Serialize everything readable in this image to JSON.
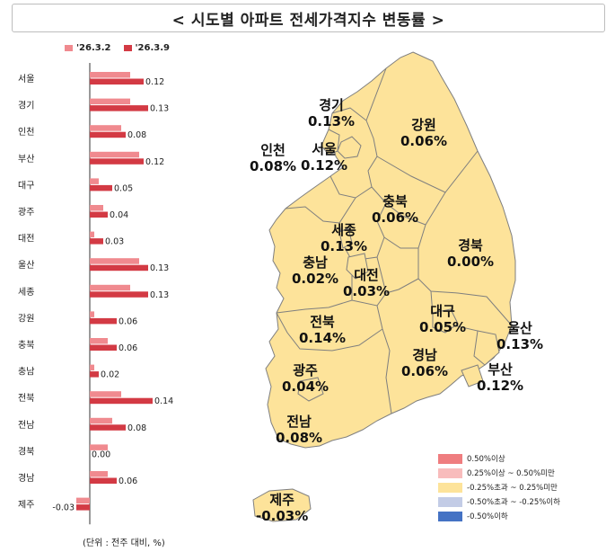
{
  "title": "< 시도별 아파트 전세가격지수 변동률 >",
  "legend_top": [
    {
      "label": "'26.3.2",
      "color": "#f08a8f"
    },
    {
      "label": "'26.3.9",
      "color": "#d33a44"
    }
  ],
  "unit_note": "(단위 : 전주 대비, %)",
  "chart_data": {
    "type": "bar",
    "orientation": "horizontal",
    "categories": [
      "서울",
      "경기",
      "인천",
      "부산",
      "대구",
      "광주",
      "대전",
      "울산",
      "세종",
      "강원",
      "충북",
      "충남",
      "전북",
      "전남",
      "경북",
      "경남",
      "제주"
    ],
    "series": [
      {
        "name": "'26.3.2",
        "color": "#f08a8f",
        "values": [
          0.09,
          0.09,
          0.07,
          0.11,
          0.02,
          0.03,
          0.01,
          0.11,
          0.09,
          0.01,
          0.04,
          0.01,
          0.07,
          0.05,
          0.04,
          0.04,
          -0.03
        ]
      },
      {
        "name": "'26.3.9",
        "color": "#d33a44",
        "values": [
          0.12,
          0.13,
          0.08,
          0.12,
          0.05,
          0.04,
          0.03,
          0.13,
          0.13,
          0.06,
          0.06,
          0.02,
          0.14,
          0.08,
          0.0,
          0.06,
          -0.03
        ]
      }
    ],
    "data_labels": [
      "0.12",
      "0.13",
      "0.08",
      "0.12",
      "0.05",
      "0.04",
      "0.03",
      "0.13",
      "0.13",
      "0.06",
      "0.06",
      "0.02",
      "0.14",
      "0.08",
      "0.00",
      "0.06",
      "-0.03"
    ],
    "xlim": [
      -0.04,
      0.15
    ]
  },
  "map": {
    "regions": [
      {
        "name": "경기",
        "value": "0.13%",
        "id": "gyeonggi"
      },
      {
        "name": "서울",
        "value": "0.12%",
        "id": "seoul"
      },
      {
        "name": "인천",
        "value": "0.08%",
        "id": "incheon"
      },
      {
        "name": "강원",
        "value": "0.06%",
        "id": "gangwon"
      },
      {
        "name": "충북",
        "value": "0.06%",
        "id": "chungbuk"
      },
      {
        "name": "세종",
        "value": "0.13%",
        "id": "sejong"
      },
      {
        "name": "충남",
        "value": "0.02%",
        "id": "chungnam"
      },
      {
        "name": "대전",
        "value": "0.03%",
        "id": "daejeon"
      },
      {
        "name": "경북",
        "value": "0.00%",
        "id": "gyeongbuk"
      },
      {
        "name": "대구",
        "value": "0.05%",
        "id": "daegu"
      },
      {
        "name": "울산",
        "value": "0.13%",
        "id": "ulsan"
      },
      {
        "name": "전북",
        "value": "0.14%",
        "id": "jeonbuk"
      },
      {
        "name": "경남",
        "value": "0.06%",
        "id": "gyeongnam"
      },
      {
        "name": "부산",
        "value": "0.12%",
        "id": "busan"
      },
      {
        "name": "광주",
        "value": "0.04%",
        "id": "gwangju"
      },
      {
        "name": "전남",
        "value": "0.08%",
        "id": "jeonnam"
      },
      {
        "name": "제주",
        "value": "-0.03%",
        "id": "jeju"
      }
    ],
    "fill_color": "#fde39a",
    "legend": [
      {
        "label": "0.50%이상",
        "color": "#ef7d7f"
      },
      {
        "label": "0.25%이상 ~ 0.50%미만",
        "color": "#f8bcbc"
      },
      {
        "label": "-0.25%초과 ~ 0.25%미만",
        "color": "#fde39a"
      },
      {
        "label": "-0.50%초과 ~ -0.25%이하",
        "color": "#c3cce6"
      },
      {
        "label": "-0.50%이하",
        "color": "#4472c4"
      }
    ]
  }
}
